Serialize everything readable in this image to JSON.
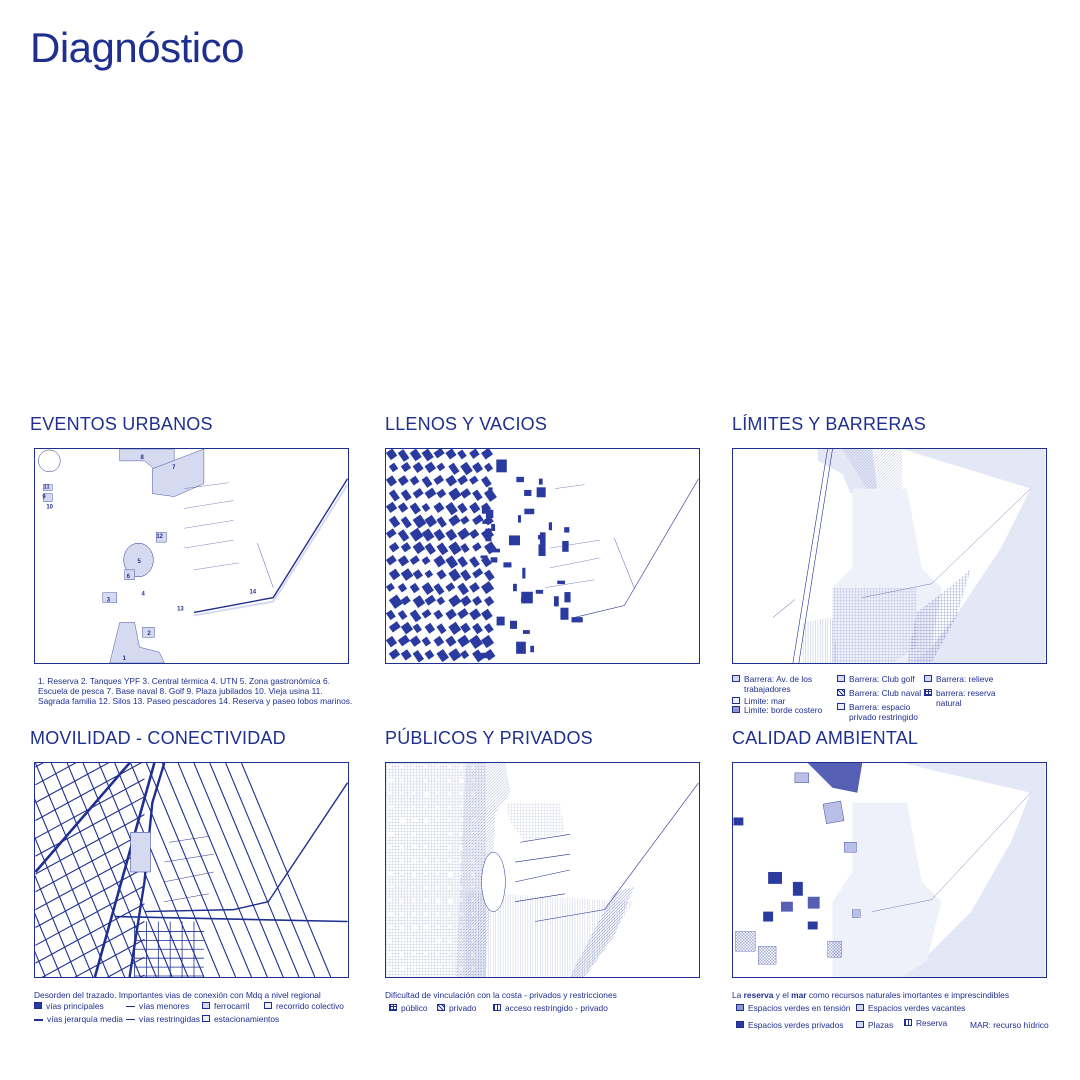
{
  "title": "Diagnóstico",
  "panels": {
    "eventos": {
      "title": "EVENTOS URBANOS",
      "labels": [
        "1",
        "2",
        "3",
        "4",
        "5",
        "6",
        "7",
        "8",
        "9",
        "10",
        "11",
        "12",
        "13",
        "14"
      ],
      "caption": "1. Reserva  2.  Tanques YPF  3. Central térmica  4. UTN  5. Zona gastronómica  6. Escuela de pesca  7. Base naval  8. Golf  9. Plaza jubilados  10. Vieja usina  11. Sagrada familia  12. Silos  13. Paseo pescadores  14. Reserva y paseo lobos marinos."
    },
    "llenos": {
      "title": "LLENOS Y VACIOS"
    },
    "limites": {
      "title": "LÍMITES Y BARRERAS",
      "legend": [
        "Barrera: Av. de los trabajadores",
        "Limite: mar",
        "Limite: borde costero",
        "Barrera: Club golf",
        "Barrera: Club naval",
        "Barrera: espacio privado restringido",
        "Barrera: relieve",
        "barrera: reserva natural"
      ]
    },
    "movilidad": {
      "title": "MOVILIDAD - CONECTIVIDAD",
      "caption": "Desorden del trazado. Importantes vias de conexión con Mdq a nivel regional",
      "legend": [
        "vías principales",
        "vías jerarquía media",
        "vías menores",
        "vías restringidas",
        "ferrocarril",
        "estacionamientos",
        "recorrido colectivo"
      ]
    },
    "publicos": {
      "title": "PÚBLICOS Y PRIVADOS",
      "caption": "Dificultad de vinculación con la costa - privados y restricciones",
      "legend": [
        "público",
        "privado",
        "acceso restringido - privado"
      ]
    },
    "calidad": {
      "title": "CALIDAD AMBIENTAL",
      "caption_pre": "La ",
      "caption_b1": "reserva",
      "caption_mid": " y el ",
      "caption_b2": "mar",
      "caption_post": " como recursos naturales imortantes e imprescindibles",
      "legend": [
        "Espacios verdes en tensión",
        "Espacios verdes vacantes",
        "Espacios verdes privados",
        "Plazas",
        "Reserva",
        "MAR: recurso hídrico"
      ]
    }
  },
  "colors": {
    "ink": "#1f2f8f",
    "light": "#d6daf1",
    "mid": "#8f98d2",
    "dark": "#2b3a9e"
  }
}
